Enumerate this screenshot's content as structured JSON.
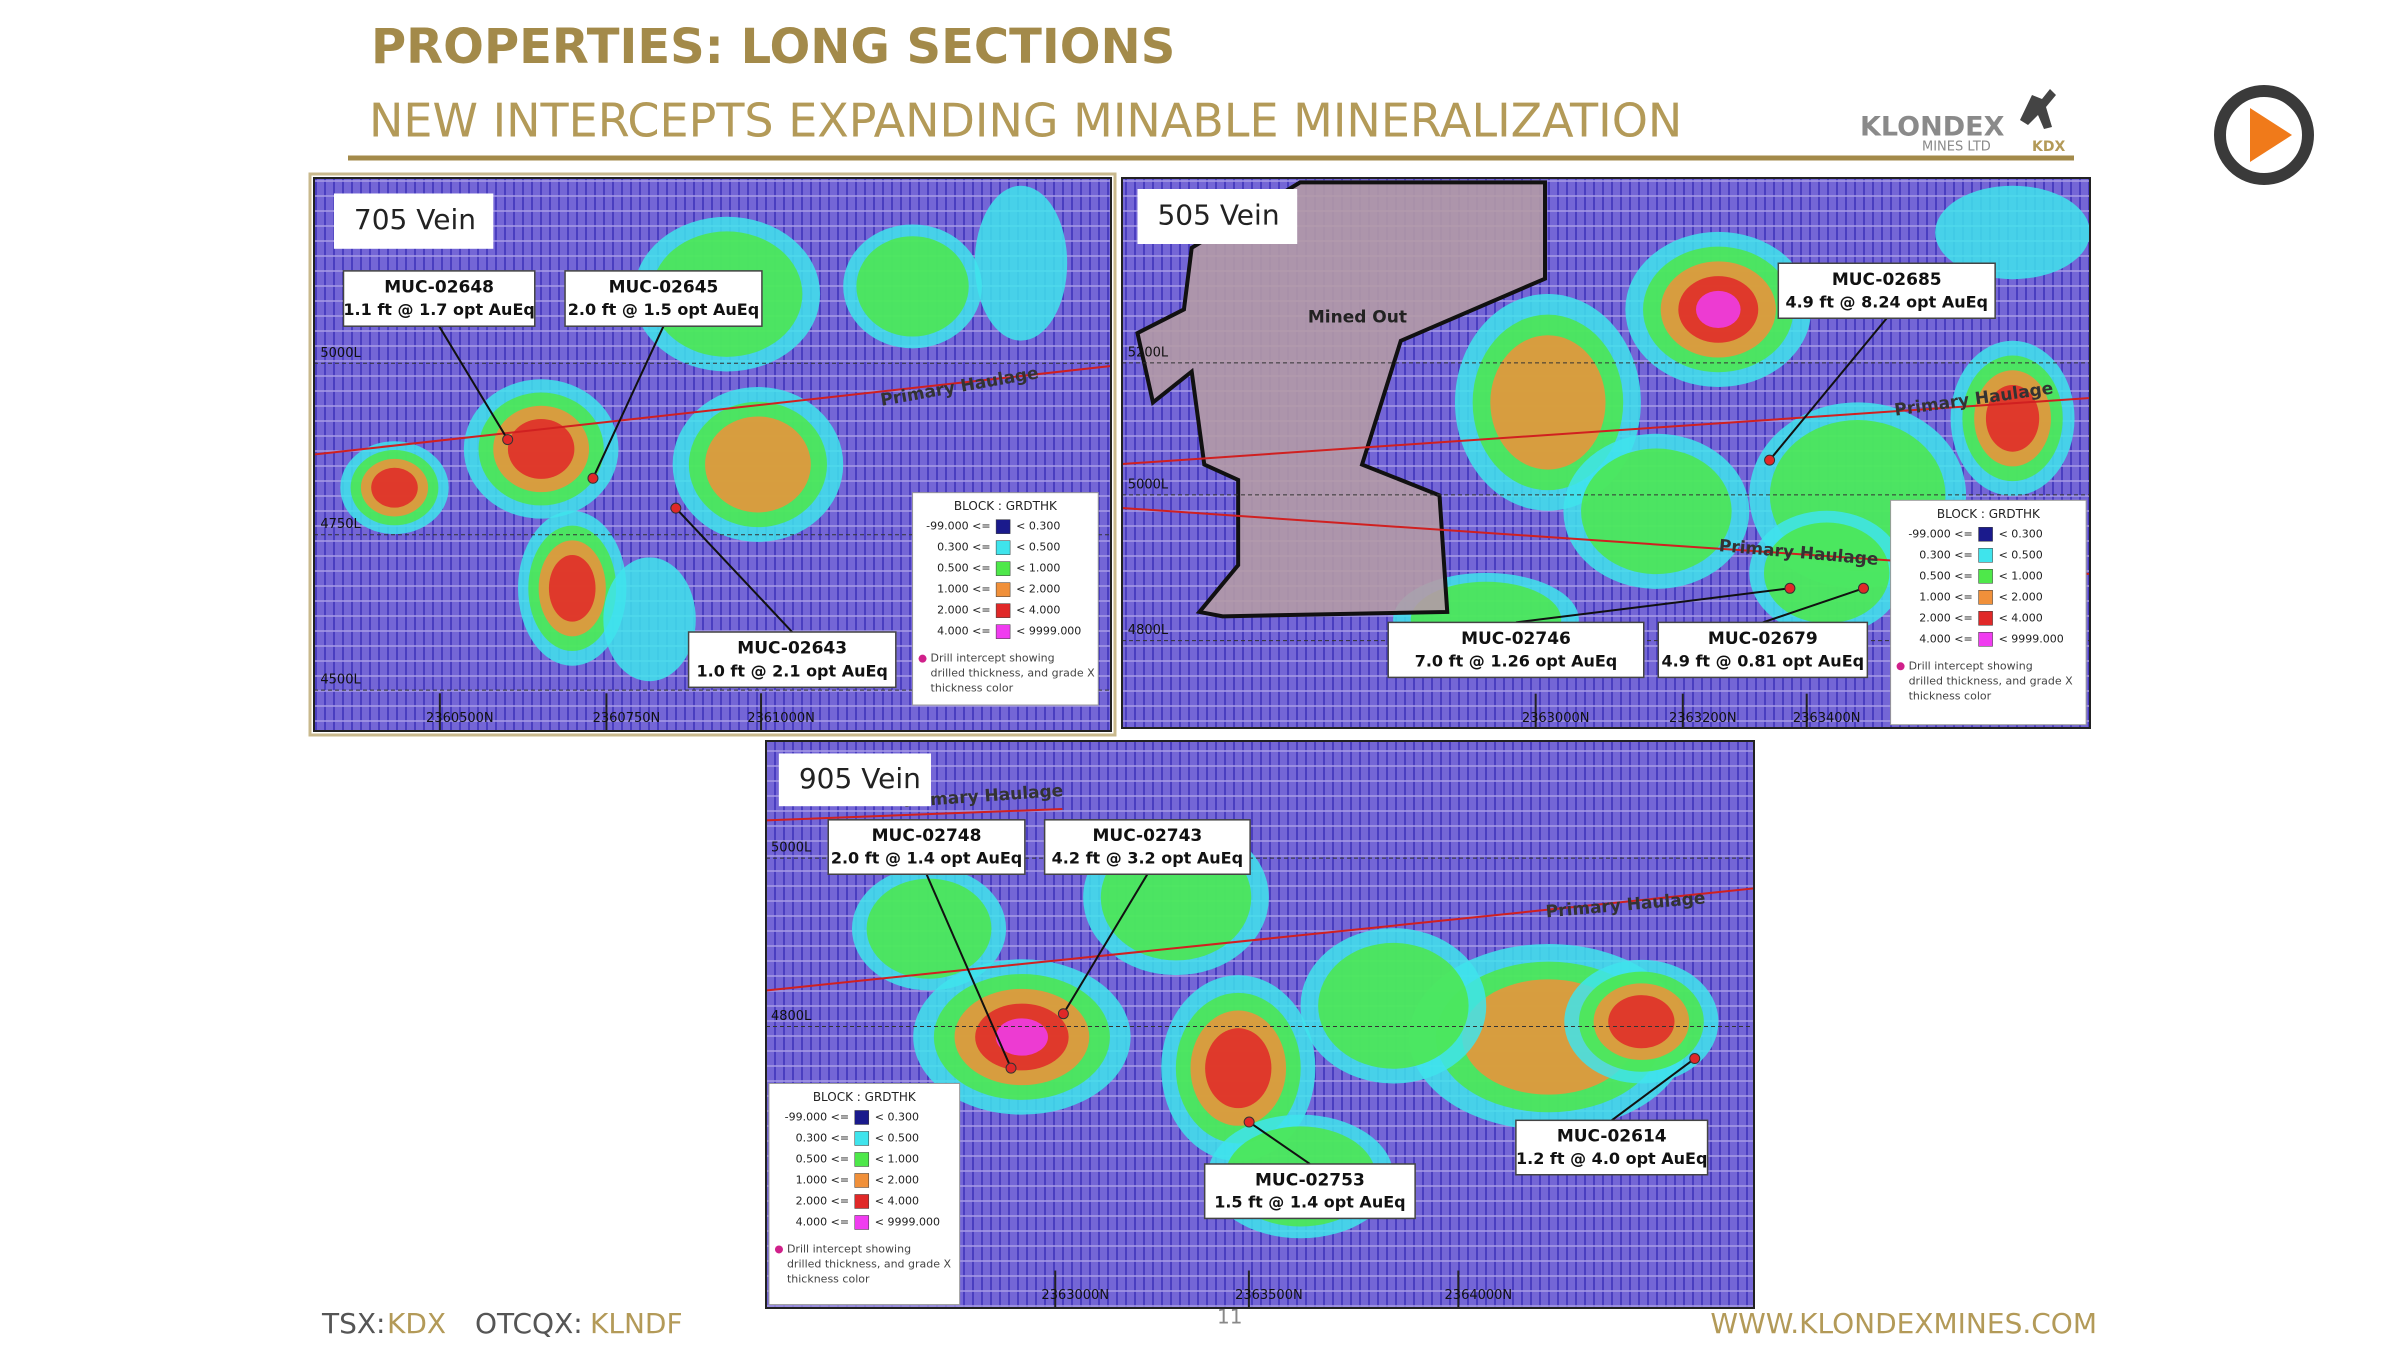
{
  "header": {
    "title": "PROPERTIES: LONG SECTIONS",
    "subtitle": "NEW INTERCEPTS EXPANDING MINABLE MINERALIZATION",
    "logo": {
      "name": "KLONDEX",
      "sub": "MINES LTD",
      "ticker": "KDX"
    }
  },
  "legend": {
    "title": "BLOCK : GRDTHK",
    "rows": [
      {
        "from": "-99.000 <=",
        "to": "< 0.300",
        "color": "#1a1a8c"
      },
      {
        "from": "0.300 <=",
        "to": "< 0.500",
        "color": "#3fe4ec"
      },
      {
        "from": "0.500 <=",
        "to": "< 1.000",
        "color": "#4ee84a"
      },
      {
        "from": "1.000 <=",
        "to": "< 2.000",
        "color": "#f0903a"
      },
      {
        "from": "2.000 <=",
        "to": "< 4.000",
        "color": "#e02828"
      },
      {
        "from": "4.000 <=",
        "to": "< 9999.000",
        "color": "#f03cf0"
      }
    ],
    "note": [
      "Drill intercept showing",
      "drilled thickness, and grade X",
      "thickness color"
    ]
  },
  "panels": [
    {
      "name": "705 Vein",
      "levels": [
        "5000L",
        "4750L",
        "4500L"
      ],
      "northings": [
        "2360500N",
        "2360750N",
        "2361000N"
      ],
      "haulage": [
        "Primary Haulage"
      ],
      "callouts": [
        {
          "id": "MUC-02648",
          "text": "1.1 ft @ 1.7 opt AuEq"
        },
        {
          "id": "MUC-02645",
          "text": "2.0 ft @ 1.5 opt AuEq"
        },
        {
          "id": "MUC-02643",
          "text": "1.0 ft @ 2.1 opt AuEq"
        }
      ]
    },
    {
      "name": "505 Vein",
      "levels": [
        "5200L",
        "5000L",
        "4800L"
      ],
      "northings": [
        "2363000N",
        "2363200N",
        "2363400N"
      ],
      "haulage": [
        "Primary Haulage",
        "Primary Haulage"
      ],
      "mined": "Mined Out",
      "callouts": [
        {
          "id": "MUC-02685",
          "text": "4.9 ft @ 8.24 opt AuEq"
        },
        {
          "id": "MUC-02746",
          "text": "7.0 ft @ 1.26 opt AuEq"
        },
        {
          "id": "MUC-02679",
          "text": "4.9 ft @ 0.81 opt AuEq"
        }
      ]
    },
    {
      "name": "905 Vein",
      "levels": [
        "5000L",
        "4800L"
      ],
      "northings": [
        "2363000N",
        "2363500N",
        "2364000N"
      ],
      "haulage": [
        "Primary Haulage",
        "Primary Haulage"
      ],
      "callouts": [
        {
          "id": "MUC-02748",
          "text": "2.0 ft @ 1.4 opt AuEq"
        },
        {
          "id": "MUC-02743",
          "text": "4.2 ft @ 3.2 opt AuEq"
        },
        {
          "id": "MUC-02753",
          "text": "1.5 ft @ 1.4 opt AuEq"
        },
        {
          "id": "MUC-02614",
          "text": "1.2 ft @ 4.0 opt AuEq"
        }
      ]
    }
  ],
  "footer": {
    "tsx_label": "TSX:",
    "tsx": "KDX",
    "otc_label": "OTCQX:",
    "otc": "KLNDF",
    "page": "11",
    "url": "WWW.KLONDEXMINES.COM"
  }
}
